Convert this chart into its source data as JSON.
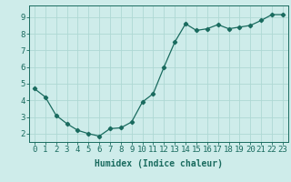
{
  "x": [
    0,
    1,
    2,
    3,
    4,
    5,
    6,
    7,
    8,
    9,
    10,
    11,
    12,
    13,
    14,
    15,
    16,
    17,
    18,
    19,
    20,
    21,
    22,
    23
  ],
  "y": [
    4.7,
    4.2,
    3.1,
    2.6,
    2.2,
    2.0,
    1.85,
    2.3,
    2.35,
    2.7,
    3.9,
    4.4,
    6.0,
    7.5,
    8.6,
    8.2,
    8.3,
    8.55,
    8.3,
    8.4,
    8.5,
    8.8,
    9.15,
    9.15
  ],
  "xlim": [
    -0.5,
    23.5
  ],
  "ylim": [
    1.5,
    9.7
  ],
  "yticks": [
    2,
    3,
    4,
    5,
    6,
    7,
    8,
    9
  ],
  "xticks": [
    0,
    1,
    2,
    3,
    4,
    5,
    6,
    7,
    8,
    9,
    10,
    11,
    12,
    13,
    14,
    15,
    16,
    17,
    18,
    19,
    20,
    21,
    22,
    23
  ],
  "xlabel": "Humidex (Indice chaleur)",
  "line_color": "#1a6b5f",
  "marker": "D",
  "marker_size": 2.2,
  "bg_color": "#ceecea",
  "grid_color": "#aed8d4",
  "axis_color": "#1a6b5f",
  "tick_label_color": "#1a6b5f",
  "xlabel_color": "#1a6b5f",
  "xlabel_fontsize": 7,
  "tick_fontsize": 6.5
}
